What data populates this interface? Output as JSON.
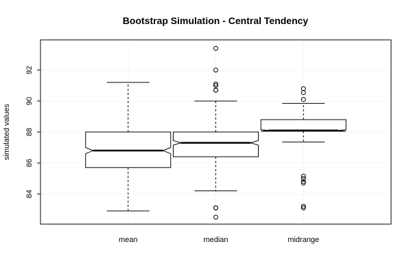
{
  "chart_data": {
    "type": "boxplot",
    "title": "Bootstrap Simulation - Central Tendency",
    "xlabel": "",
    "ylabel": "simulated values",
    "ylim": [
      82.05,
      93.95
    ],
    "yticks": [
      84,
      86,
      88,
      90,
      92
    ],
    "grid": true,
    "notched": true,
    "categories": [
      "mean",
      "median",
      "midrange"
    ],
    "boxes": [
      {
        "name": "mean",
        "whisker_low": 82.9,
        "q1": 85.7,
        "median": 86.8,
        "q3": 88.0,
        "whisker_high": 91.2,
        "notch_low": 86.6,
        "notch_high": 87.0,
        "outliers": []
      },
      {
        "name": "median",
        "whisker_low": 84.2,
        "q1": 86.4,
        "median": 87.3,
        "q3": 88.0,
        "whisker_high": 90.0,
        "notch_low": 87.15,
        "notch_high": 87.45,
        "outliers": [
          93.4,
          92.0,
          91.1,
          91.0,
          90.7,
          90.7,
          83.1,
          83.1,
          82.5
        ]
      },
      {
        "name": "midrange",
        "whisker_low": 87.35,
        "q1": 88.05,
        "median": 88.1,
        "q3": 88.8,
        "whisker_high": 89.85,
        "notch_low": 88.05,
        "notch_high": 88.15,
        "outliers": [
          90.8,
          90.55,
          90.1,
          85.15,
          85.0,
          84.8,
          84.7,
          83.2,
          83.1
        ]
      }
    ]
  }
}
